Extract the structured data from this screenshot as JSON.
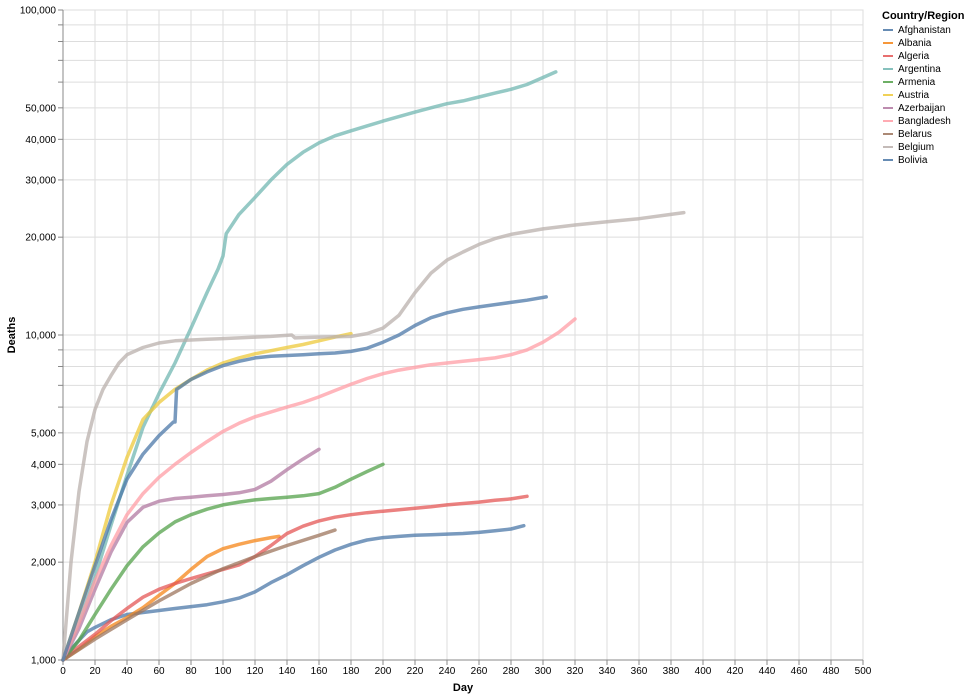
{
  "chart_data": {
    "type": "line",
    "title": "",
    "xlabel": "Day",
    "ylabel": "Deaths",
    "xlim": [
      0,
      500
    ],
    "ylim": [
      1000,
      100000
    ],
    "yscale": "log",
    "grid": true,
    "legend_title": "Country/Region",
    "legend_position": "top-right",
    "x_ticks": [
      0,
      20,
      40,
      60,
      80,
      100,
      120,
      140,
      160,
      180,
      200,
      220,
      240,
      260,
      280,
      300,
      320,
      340,
      360,
      380,
      400,
      420,
      440,
      460,
      480,
      500
    ],
    "x_tick_labels": [
      "0",
      "20",
      "40",
      "60",
      "80",
      "100",
      "120",
      "140",
      "160",
      "180",
      "200",
      "220",
      "240",
      "260",
      "280",
      "300",
      "320",
      "340",
      "360",
      "380",
      "400",
      "420",
      "440",
      "460",
      "480",
      "500"
    ],
    "y_ticks": [
      1000,
      2000,
      3000,
      4000,
      5000,
      10000,
      20000,
      30000,
      40000,
      50000,
      100000
    ],
    "y_tick_labels": [
      "1,000",
      "2,000",
      "3,000",
      "4,000",
      "5,000",
      "10,000",
      "20,000",
      "30,000",
      "40,000",
      "50,000",
      "100,000"
    ],
    "series": [
      {
        "name": "Afghanistan",
        "color": "#4c78a8",
        "points": [
          [
            0,
            1000
          ],
          [
            5,
            1080
          ],
          [
            10,
            1150
          ],
          [
            15,
            1220
          ],
          [
            20,
            1260
          ],
          [
            30,
            1330
          ],
          [
            40,
            1380
          ],
          [
            50,
            1400
          ],
          [
            60,
            1420
          ],
          [
            70,
            1440
          ],
          [
            80,
            1460
          ],
          [
            90,
            1480
          ],
          [
            100,
            1510
          ],
          [
            110,
            1550
          ],
          [
            120,
            1620
          ],
          [
            130,
            1730
          ],
          [
            140,
            1830
          ],
          [
            150,
            1950
          ],
          [
            160,
            2070
          ],
          [
            170,
            2180
          ],
          [
            180,
            2270
          ],
          [
            190,
            2340
          ],
          [
            200,
            2380
          ],
          [
            210,
            2400
          ],
          [
            220,
            2420
          ],
          [
            230,
            2430
          ],
          [
            240,
            2440
          ],
          [
            250,
            2450
          ],
          [
            260,
            2470
          ],
          [
            270,
            2500
          ],
          [
            280,
            2530
          ],
          [
            288,
            2590
          ]
        ]
      },
      {
        "name": "Albania",
        "color": "#f58518",
        "points": [
          [
            0,
            1000
          ],
          [
            10,
            1080
          ],
          [
            20,
            1180
          ],
          [
            30,
            1270
          ],
          [
            40,
            1350
          ],
          [
            50,
            1450
          ],
          [
            60,
            1580
          ],
          [
            70,
            1720
          ],
          [
            80,
            1900
          ],
          [
            90,
            2080
          ],
          [
            100,
            2200
          ],
          [
            110,
            2270
          ],
          [
            120,
            2330
          ],
          [
            130,
            2380
          ],
          [
            135,
            2400
          ]
        ]
      },
      {
        "name": "Algeria",
        "color": "#e45756",
        "points": [
          [
            0,
            1000
          ],
          [
            10,
            1100
          ],
          [
            20,
            1200
          ],
          [
            30,
            1320
          ],
          [
            40,
            1440
          ],
          [
            50,
            1560
          ],
          [
            60,
            1650
          ],
          [
            70,
            1720
          ],
          [
            80,
            1780
          ],
          [
            90,
            1840
          ],
          [
            100,
            1900
          ],
          [
            110,
            1960
          ],
          [
            120,
            2080
          ],
          [
            130,
            2250
          ],
          [
            140,
            2450
          ],
          [
            150,
            2580
          ],
          [
            160,
            2680
          ],
          [
            170,
            2750
          ],
          [
            180,
            2800
          ],
          [
            190,
            2840
          ],
          [
            200,
            2870
          ],
          [
            210,
            2900
          ],
          [
            220,
            2930
          ],
          [
            230,
            2960
          ],
          [
            240,
            3000
          ],
          [
            250,
            3030
          ],
          [
            260,
            3060
          ],
          [
            270,
            3100
          ],
          [
            280,
            3130
          ],
          [
            290,
            3190
          ]
        ]
      },
      {
        "name": "Argentina",
        "color": "#72b7b2",
        "points": [
          [
            0,
            1000
          ],
          [
            10,
            1300
          ],
          [
            20,
            1800
          ],
          [
            30,
            2600
          ],
          [
            40,
            3700
          ],
          [
            50,
            5200
          ],
          [
            60,
            6600
          ],
          [
            70,
            8200
          ],
          [
            80,
            10500
          ],
          [
            90,
            13500
          ],
          [
            97,
            16000
          ],
          [
            100,
            17500
          ],
          [
            102,
            20500
          ],
          [
            110,
            23500
          ],
          [
            120,
            26500
          ],
          [
            130,
            30000
          ],
          [
            140,
            33500
          ],
          [
            150,
            36500
          ],
          [
            160,
            39000
          ],
          [
            170,
            41000
          ],
          [
            180,
            42500
          ],
          [
            190,
            44000
          ],
          [
            200,
            45500
          ],
          [
            210,
            47000
          ],
          [
            220,
            48500
          ],
          [
            230,
            50000
          ],
          [
            240,
            51500
          ],
          [
            250,
            52500
          ],
          [
            260,
            54000
          ],
          [
            270,
            55500
          ],
          [
            280,
            57000
          ],
          [
            290,
            59000
          ],
          [
            300,
            62000
          ],
          [
            308,
            64500
          ]
        ]
      },
      {
        "name": "Armenia",
        "color": "#54a24b",
        "points": [
          [
            0,
            1000
          ],
          [
            10,
            1150
          ],
          [
            20,
            1380
          ],
          [
            30,
            1650
          ],
          [
            40,
            1950
          ],
          [
            50,
            2230
          ],
          [
            60,
            2460
          ],
          [
            70,
            2660
          ],
          [
            80,
            2800
          ],
          [
            90,
            2910
          ],
          [
            100,
            3000
          ],
          [
            110,
            3060
          ],
          [
            120,
            3110
          ],
          [
            130,
            3140
          ],
          [
            140,
            3170
          ],
          [
            150,
            3200
          ],
          [
            160,
            3250
          ],
          [
            170,
            3400
          ],
          [
            180,
            3600
          ],
          [
            190,
            3800
          ],
          [
            200,
            4000
          ]
        ]
      },
      {
        "name": "Austria",
        "color": "#eeca3b",
        "points": [
          [
            0,
            1000
          ],
          [
            10,
            1400
          ],
          [
            20,
            2000
          ],
          [
            30,
            3000
          ],
          [
            40,
            4200
          ],
          [
            50,
            5500
          ],
          [
            60,
            6200
          ],
          [
            70,
            6800
          ],
          [
            80,
            7300
          ],
          [
            90,
            7800
          ],
          [
            100,
            8200
          ],
          [
            110,
            8500
          ],
          [
            120,
            8750
          ],
          [
            130,
            8950
          ],
          [
            140,
            9150
          ],
          [
            150,
            9350
          ],
          [
            160,
            9600
          ],
          [
            170,
            9850
          ],
          [
            180,
            10100
          ]
        ]
      },
      {
        "name": "Azerbaijan",
        "color": "#b279a2",
        "points": [
          [
            0,
            1000
          ],
          [
            10,
            1250
          ],
          [
            20,
            1650
          ],
          [
            30,
            2150
          ],
          [
            40,
            2650
          ],
          [
            50,
            2950
          ],
          [
            60,
            3080
          ],
          [
            70,
            3140
          ],
          [
            80,
            3170
          ],
          [
            90,
            3200
          ],
          [
            100,
            3230
          ],
          [
            110,
            3270
          ],
          [
            120,
            3350
          ],
          [
            130,
            3550
          ],
          [
            140,
            3850
          ],
          [
            150,
            4150
          ],
          [
            160,
            4450
          ]
        ]
      },
      {
        "name": "Bangladesh",
        "color": "#ff9da6",
        "points": [
          [
            0,
            1000
          ],
          [
            10,
            1300
          ],
          [
            20,
            1750
          ],
          [
            30,
            2250
          ],
          [
            40,
            2800
          ],
          [
            50,
            3250
          ],
          [
            60,
            3650
          ],
          [
            70,
            4000
          ],
          [
            80,
            4350
          ],
          [
            90,
            4700
          ],
          [
            100,
            5050
          ],
          [
            110,
            5350
          ],
          [
            120,
            5600
          ],
          [
            130,
            5800
          ],
          [
            140,
            6000
          ],
          [
            150,
            6200
          ],
          [
            160,
            6450
          ],
          [
            170,
            6750
          ],
          [
            180,
            7050
          ],
          [
            190,
            7350
          ],
          [
            200,
            7600
          ],
          [
            210,
            7800
          ],
          [
            220,
            7950
          ],
          [
            230,
            8100
          ],
          [
            240,
            8200
          ],
          [
            250,
            8300
          ],
          [
            260,
            8400
          ],
          [
            270,
            8500
          ],
          [
            280,
            8700
          ],
          [
            290,
            9000
          ],
          [
            300,
            9500
          ],
          [
            310,
            10200
          ],
          [
            320,
            11200
          ]
        ]
      },
      {
        "name": "Belarus",
        "color": "#9d755d",
        "points": [
          [
            0,
            1000
          ],
          [
            20,
            1160
          ],
          [
            40,
            1330
          ],
          [
            60,
            1520
          ],
          [
            80,
            1720
          ],
          [
            100,
            1910
          ],
          [
            120,
            2080
          ],
          [
            140,
            2250
          ],
          [
            160,
            2420
          ],
          [
            170,
            2510
          ]
        ]
      },
      {
        "name": "Belgium",
        "color": "#bab0ac",
        "points": [
          [
            0,
            1000
          ],
          [
            5,
            2000
          ],
          [
            10,
            3300
          ],
          [
            15,
            4700
          ],
          [
            20,
            5900
          ],
          [
            25,
            6800
          ],
          [
            30,
            7500
          ],
          [
            35,
            8200
          ],
          [
            40,
            8700
          ],
          [
            50,
            9150
          ],
          [
            60,
            9450
          ],
          [
            70,
            9600
          ],
          [
            80,
            9650
          ],
          [
            90,
            9700
          ],
          [
            100,
            9750
          ],
          [
            110,
            9800
          ],
          [
            120,
            9850
          ],
          [
            130,
            9900
          ],
          [
            143,
            10000
          ],
          [
            145,
            9800
          ],
          [
            160,
            9850
          ],
          [
            180,
            9900
          ],
          [
            190,
            10100
          ],
          [
            200,
            10500
          ],
          [
            210,
            11500
          ],
          [
            220,
            13500
          ],
          [
            230,
            15500
          ],
          [
            240,
            17000
          ],
          [
            250,
            18000
          ],
          [
            260,
            19000
          ],
          [
            270,
            19800
          ],
          [
            280,
            20400
          ],
          [
            290,
            20800
          ],
          [
            300,
            21200
          ],
          [
            320,
            21800
          ],
          [
            340,
            22300
          ],
          [
            360,
            22800
          ],
          [
            380,
            23500
          ],
          [
            388,
            23800
          ]
        ]
      },
      {
        "name": "Bolivia",
        "color": "#4c78a8",
        "points": [
          [
            0,
            1000
          ],
          [
            10,
            1400
          ],
          [
            20,
            1950
          ],
          [
            30,
            2700
          ],
          [
            40,
            3600
          ],
          [
            50,
            4300
          ],
          [
            60,
            4900
          ],
          [
            69,
            5400
          ],
          [
            70,
            5400
          ],
          [
            71,
            6800
          ],
          [
            80,
            7300
          ],
          [
            90,
            7700
          ],
          [
            100,
            8050
          ],
          [
            110,
            8300
          ],
          [
            120,
            8500
          ],
          [
            130,
            8600
          ],
          [
            140,
            8650
          ],
          [
            150,
            8700
          ],
          [
            160,
            8750
          ],
          [
            170,
            8800
          ],
          [
            180,
            8900
          ],
          [
            190,
            9100
          ],
          [
            200,
            9500
          ],
          [
            210,
            10000
          ],
          [
            220,
            10700
          ],
          [
            230,
            11300
          ],
          [
            240,
            11700
          ],
          [
            250,
            12000
          ],
          [
            260,
            12200
          ],
          [
            270,
            12400
          ],
          [
            280,
            12600
          ],
          [
            290,
            12800
          ],
          [
            302,
            13100
          ]
        ]
      }
    ]
  }
}
